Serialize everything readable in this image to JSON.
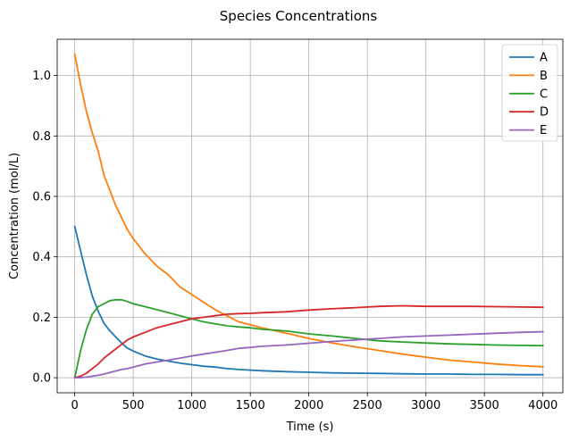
{
  "chart_data": {
    "type": "line",
    "title": "Species Concentrations",
    "xlabel": "Time (s)",
    "ylabel": "Concentration (mol/L)",
    "xlim": [
      -150,
      4170
    ],
    "ylim": [
      -0.05,
      1.12
    ],
    "xticks": [
      0,
      500,
      1000,
      1500,
      2000,
      2500,
      3000,
      3500,
      4000
    ],
    "xtick_labels": [
      "0",
      "500",
      "1000",
      "1500",
      "2000",
      "2500",
      "3000",
      "3500",
      "4000"
    ],
    "yticks": [
      0.0,
      0.2,
      0.4,
      0.6,
      0.8,
      1.0
    ],
    "ytick_labels": [
      "0.0",
      "0.2",
      "0.4",
      "0.6",
      "0.8",
      "1.0"
    ],
    "grid": true,
    "legend_position": "top-right",
    "x": [
      0,
      50,
      100,
      150,
      200,
      250,
      300,
      350,
      400,
      450,
      500,
      600,
      700,
      800,
      900,
      1000,
      1100,
      1200,
      1300,
      1400,
      1500,
      1600,
      1800,
      2000,
      2200,
      2400,
      2600,
      2800,
      3000,
      3200,
      3400,
      3600,
      3800,
      4000
    ],
    "series": [
      {
        "name": "A",
        "color": "#1f77b4",
        "values": [
          0.5,
          0.42,
          0.34,
          0.27,
          0.22,
          0.18,
          0.155,
          0.135,
          0.115,
          0.098,
          0.088,
          0.072,
          0.062,
          0.055,
          0.048,
          0.043,
          0.038,
          0.035,
          0.03,
          0.027,
          0.025,
          0.023,
          0.02,
          0.018,
          0.016,
          0.015,
          0.014,
          0.013,
          0.012,
          0.012,
          0.011,
          0.011,
          0.01,
          0.01
        ]
      },
      {
        "name": "B",
        "color": "#ff7f0e",
        "values": [
          1.07,
          0.97,
          0.88,
          0.81,
          0.75,
          0.67,
          0.62,
          0.57,
          0.53,
          0.49,
          0.46,
          0.41,
          0.37,
          0.34,
          0.3,
          0.275,
          0.25,
          0.225,
          0.205,
          0.185,
          0.175,
          0.165,
          0.148,
          0.13,
          0.115,
          0.102,
          0.09,
          0.078,
          0.068,
          0.058,
          0.052,
          0.045,
          0.04,
          0.036
        ]
      },
      {
        "name": "C",
        "color": "#2ca02c",
        "values": [
          0.0,
          0.09,
          0.16,
          0.21,
          0.235,
          0.245,
          0.255,
          0.258,
          0.258,
          0.252,
          0.245,
          0.235,
          0.225,
          0.215,
          0.205,
          0.195,
          0.185,
          0.178,
          0.172,
          0.168,
          0.165,
          0.16,
          0.155,
          0.145,
          0.138,
          0.13,
          0.122,
          0.118,
          0.115,
          0.112,
          0.11,
          0.108,
          0.107,
          0.106
        ]
      },
      {
        "name": "D",
        "color": "#d62728",
        "values": [
          0.0,
          0.005,
          0.015,
          0.03,
          0.045,
          0.065,
          0.08,
          0.095,
          0.11,
          0.125,
          0.135,
          0.15,
          0.165,
          0.175,
          0.185,
          0.195,
          0.2,
          0.205,
          0.21,
          0.212,
          0.213,
          0.215,
          0.218,
          0.224,
          0.228,
          0.232,
          0.236,
          0.238,
          0.236,
          0.236,
          0.236,
          0.235,
          0.234,
          0.233
        ]
      },
      {
        "name": "E",
        "color": "#9467bd",
        "values": [
          0.0,
          0.0,
          0.002,
          0.005,
          0.008,
          0.012,
          0.017,
          0.022,
          0.027,
          0.03,
          0.035,
          0.045,
          0.052,
          0.058,
          0.065,
          0.072,
          0.078,
          0.084,
          0.09,
          0.097,
          0.1,
          0.104,
          0.108,
          0.114,
          0.12,
          0.125,
          0.13,
          0.135,
          0.138,
          0.141,
          0.144,
          0.147,
          0.15,
          0.152
        ]
      }
    ]
  }
}
